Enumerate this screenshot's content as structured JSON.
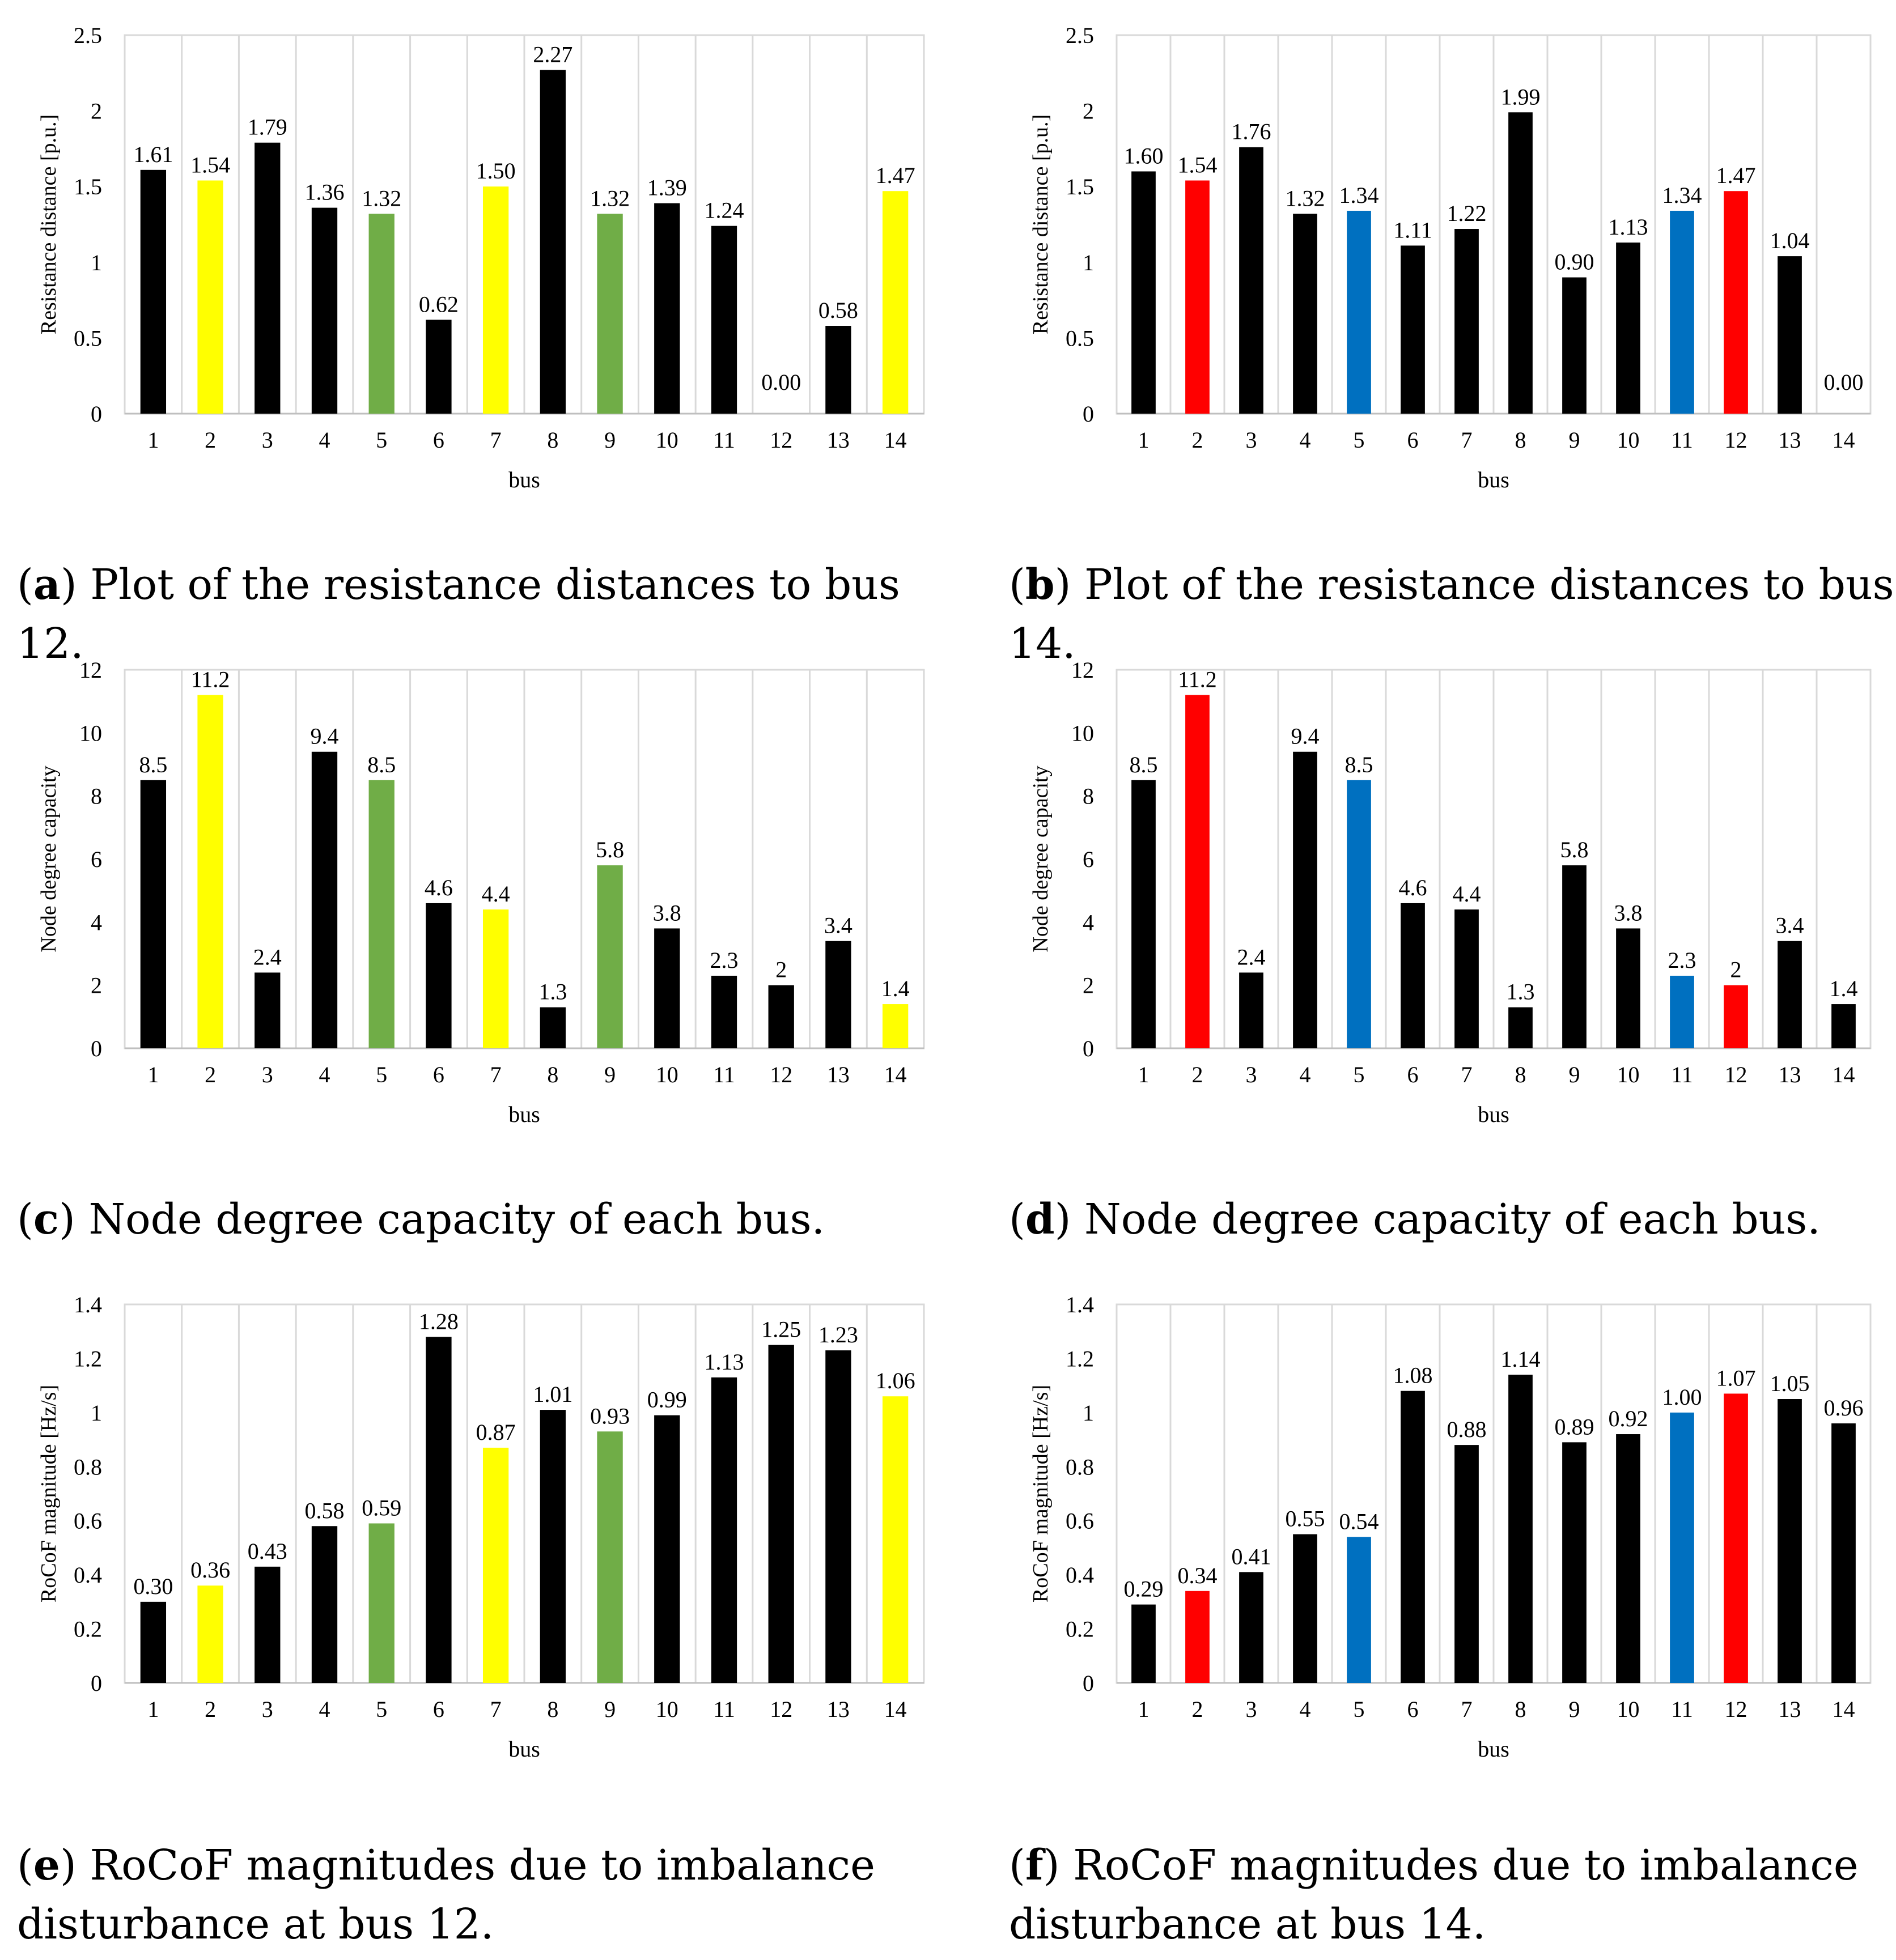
{
  "colors": {
    "black": "#000000",
    "yellow": "#ffff00",
    "green": "#70ad47",
    "red": "#ff0000",
    "blue": "#0070c0",
    "grid": "#d9d9d9"
  },
  "chart_data": [
    {
      "id": "a",
      "type": "bar",
      "title": "",
      "xlabel": "bus",
      "ylabel": "Resistance distance [p.u.]",
      "categories": [
        "1",
        "2",
        "3",
        "4",
        "5",
        "6",
        "7",
        "8",
        "9",
        "10",
        "11",
        "12",
        "13",
        "14"
      ],
      "values": [
        1.61,
        1.54,
        1.79,
        1.36,
        1.32,
        0.62,
        1.5,
        2.27,
        1.32,
        1.39,
        1.24,
        0.0,
        0.58,
        1.47
      ],
      "labels": [
        "1.61",
        "1.54",
        "1.79",
        "1.36",
        "1.32",
        "0.62",
        "1.50",
        "2.27",
        "1.32",
        "1.39",
        "1.24",
        "0.00",
        "0.58",
        "1.47"
      ],
      "bar_colors": [
        "black",
        "yellow",
        "black",
        "black",
        "green",
        "black",
        "yellow",
        "black",
        "green",
        "black",
        "black",
        "black",
        "black",
        "yellow"
      ],
      "ylim": [
        0,
        2.5
      ],
      "yticks": [
        "0",
        "0.5",
        "1",
        "1.5",
        "2",
        "2.5"
      ],
      "caption_label": "a",
      "caption_text": "Plot of the resistance distances to bus 12."
    },
    {
      "id": "b",
      "type": "bar",
      "title": "",
      "xlabel": "bus",
      "ylabel": "Resistance distance [p.u.]",
      "categories": [
        "1",
        "2",
        "3",
        "4",
        "5",
        "6",
        "7",
        "8",
        "9",
        "10",
        "11",
        "12",
        "13",
        "14"
      ],
      "values": [
        1.6,
        1.54,
        1.76,
        1.32,
        1.34,
        1.11,
        1.22,
        1.99,
        0.9,
        1.13,
        1.34,
        1.47,
        1.04,
        0.0
      ],
      "labels": [
        "1.60",
        "1.54",
        "1.76",
        "1.32",
        "1.34",
        "1.11",
        "1.22",
        "1.99",
        "0.90",
        "1.13",
        "1.34",
        "1.47",
        "1.04",
        "0.00"
      ],
      "bar_colors": [
        "black",
        "red",
        "black",
        "black",
        "blue",
        "black",
        "black",
        "black",
        "black",
        "black",
        "blue",
        "red",
        "black",
        "black"
      ],
      "ylim": [
        0,
        2.5
      ],
      "yticks": [
        "0",
        "0.5",
        "1",
        "1.5",
        "2",
        "2.5"
      ],
      "caption_label": "b",
      "caption_text": "Plot of the resistance distances to bus 14."
    },
    {
      "id": "c",
      "type": "bar",
      "title": "",
      "xlabel": "bus",
      "ylabel": "Node degree capacity",
      "categories": [
        "1",
        "2",
        "3",
        "4",
        "5",
        "6",
        "7",
        "8",
        "9",
        "10",
        "11",
        "12",
        "13",
        "14"
      ],
      "values": [
        8.5,
        11.2,
        2.4,
        9.4,
        8.5,
        4.6,
        4.4,
        1.3,
        5.8,
        3.8,
        2.3,
        2,
        3.4,
        1.4
      ],
      "labels": [
        "8.5",
        "11.2",
        "2.4",
        "9.4",
        "8.5",
        "4.6",
        "4.4",
        "1.3",
        "5.8",
        "3.8",
        "2.3",
        "2",
        "3.4",
        "1.4"
      ],
      "bar_colors": [
        "black",
        "yellow",
        "black",
        "black",
        "green",
        "black",
        "yellow",
        "black",
        "green",
        "black",
        "black",
        "black",
        "black",
        "yellow"
      ],
      "ylim": [
        0,
        12
      ],
      "yticks": [
        "0",
        "2",
        "4",
        "6",
        "8",
        "10",
        "12"
      ],
      "caption_label": "c",
      "caption_text": "Node degree capacity of each bus."
    },
    {
      "id": "d",
      "type": "bar",
      "title": "",
      "xlabel": "bus",
      "ylabel": "Node degree capacity",
      "categories": [
        "1",
        "2",
        "3",
        "4",
        "5",
        "6",
        "7",
        "8",
        "9",
        "10",
        "11",
        "12",
        "13",
        "14"
      ],
      "values": [
        8.5,
        11.2,
        2.4,
        9.4,
        8.5,
        4.6,
        4.4,
        1.3,
        5.8,
        3.8,
        2.3,
        2,
        3.4,
        1.4
      ],
      "labels": [
        "8.5",
        "11.2",
        "2.4",
        "9.4",
        "8.5",
        "4.6",
        "4.4",
        "1.3",
        "5.8",
        "3.8",
        "2.3",
        "2",
        "3.4",
        "1.4"
      ],
      "bar_colors": [
        "black",
        "red",
        "black",
        "black",
        "blue",
        "black",
        "black",
        "black",
        "black",
        "black",
        "blue",
        "red",
        "black",
        "black"
      ],
      "ylim": [
        0,
        12
      ],
      "yticks": [
        "0",
        "2",
        "4",
        "6",
        "8",
        "10",
        "12"
      ],
      "caption_label": "d",
      "caption_text": "Node degree capacity of each bus."
    },
    {
      "id": "e",
      "type": "bar",
      "title": "",
      "xlabel": "bus",
      "ylabel": "RoCoF magnitude [Hz/s]",
      "categories": [
        "1",
        "2",
        "3",
        "4",
        "5",
        "6",
        "7",
        "8",
        "9",
        "10",
        "11",
        "12",
        "13",
        "14"
      ],
      "values": [
        0.3,
        0.36,
        0.43,
        0.58,
        0.59,
        1.28,
        0.87,
        1.01,
        0.93,
        0.99,
        1.13,
        1.25,
        1.23,
        1.06
      ],
      "labels": [
        "0.30",
        "0.36",
        "0.43",
        "0.58",
        "0.59",
        "1.28",
        "0.87",
        "1.01",
        "0.93",
        "0.99",
        "1.13",
        "1.25",
        "1.23",
        "1.06"
      ],
      "bar_colors": [
        "black",
        "yellow",
        "black",
        "black",
        "green",
        "black",
        "yellow",
        "black",
        "green",
        "black",
        "black",
        "black",
        "black",
        "yellow"
      ],
      "ylim": [
        0,
        1.4
      ],
      "yticks": [
        "0",
        "0.2",
        "0.4",
        "0.6",
        "0.8",
        "1",
        "1.2",
        "1.4"
      ],
      "caption_label": "e",
      "caption_text": "RoCoF magnitudes due to imbalance disturbance at bus 12."
    },
    {
      "id": "f",
      "type": "bar",
      "title": "",
      "xlabel": "bus",
      "ylabel": "RoCoF magnitude [Hz/s]",
      "categories": [
        "1",
        "2",
        "3",
        "4",
        "5",
        "6",
        "7",
        "8",
        "9",
        "10",
        "11",
        "12",
        "13",
        "14"
      ],
      "values": [
        0.29,
        0.34,
        0.41,
        0.55,
        0.54,
        1.08,
        0.88,
        1.14,
        0.89,
        0.92,
        1.0,
        1.07,
        1.05,
        0.96
      ],
      "labels": [
        "0.29",
        "0.34",
        "0.41",
        "0.55",
        "0.54",
        "1.08",
        "0.88",
        "1.14",
        "0.89",
        "0.92",
        "1.00",
        "1.07",
        "1.05",
        "0.96"
      ],
      "bar_colors": [
        "black",
        "red",
        "black",
        "black",
        "blue",
        "black",
        "black",
        "black",
        "black",
        "black",
        "blue",
        "red",
        "black",
        "black"
      ],
      "ylim": [
        0,
        1.4
      ],
      "yticks": [
        "0",
        "0.2",
        "0.4",
        "0.6",
        "0.8",
        "1",
        "1.2",
        "1.4"
      ],
      "caption_label": "f",
      "caption_text": "RoCoF magnitudes due to imbalance disturbance at bus 14."
    }
  ]
}
